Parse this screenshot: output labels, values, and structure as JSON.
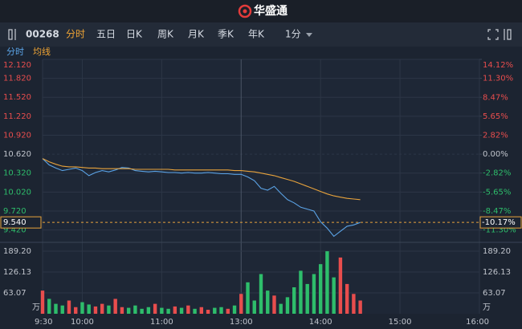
{
  "header": {
    "logo": "华盛通"
  },
  "toolbar": {
    "code": "00268",
    "tabs": [
      "分时",
      "五日",
      "日K",
      "周K",
      "月K",
      "季K",
      "年K"
    ],
    "interval": "1分"
  },
  "chart_data": {
    "type": "line",
    "x": [
      0,
      5,
      10,
      15,
      20,
      25,
      30,
      35,
      40,
      45,
      50,
      55,
      60,
      65,
      70,
      75,
      80,
      85,
      90,
      95,
      100,
      105,
      110,
      115,
      120,
      125,
      130,
      135,
      140,
      145,
      150,
      155,
      160,
      165,
      170,
      175,
      180,
      185,
      190,
      195,
      200,
      205,
      210,
      215,
      220,
      225,
      230,
      235,
      240
    ],
    "xlim": [
      0,
      330
    ],
    "xticks": [
      {
        "value": 0,
        "label": "9:30"
      },
      {
        "value": 30,
        "label": "10:00"
      },
      {
        "value": 90,
        "label": "11:00"
      },
      {
        "value": 150,
        "label": "13:00"
      },
      {
        "value": 210,
        "label": "14:00"
      },
      {
        "value": 270,
        "label": "15:00"
      },
      {
        "value": 330,
        "label": "16:00"
      }
    ],
    "series": [
      {
        "name": "分时",
        "color": "#5ba3e6",
        "values": [
          10.55,
          10.45,
          10.4,
          10.36,
          10.38,
          10.4,
          10.36,
          10.28,
          10.33,
          10.36,
          10.34,
          10.37,
          10.41,
          10.4,
          10.36,
          10.35,
          10.34,
          10.35,
          10.34,
          10.33,
          10.33,
          10.32,
          10.33,
          10.32,
          10.32,
          10.33,
          10.32,
          10.31,
          10.31,
          10.3,
          10.3,
          10.26,
          10.2,
          10.08,
          10.05,
          10.11,
          10.0,
          9.9,
          9.85,
          9.78,
          9.75,
          9.72,
          9.55,
          9.45,
          9.32,
          9.4,
          9.48,
          9.5,
          9.54
        ]
      },
      {
        "name": "均线",
        "color": "#e8a33c",
        "values": [
          10.55,
          10.5,
          10.46,
          10.43,
          10.42,
          10.42,
          10.41,
          10.4,
          10.4,
          10.39,
          10.39,
          10.39,
          10.39,
          10.39,
          10.38,
          10.38,
          10.38,
          10.38,
          10.38,
          10.38,
          10.37,
          10.37,
          10.37,
          10.37,
          10.37,
          10.37,
          10.37,
          10.37,
          10.37,
          10.36,
          10.36,
          10.35,
          10.34,
          10.32,
          10.3,
          10.28,
          10.25,
          10.22,
          10.19,
          10.15,
          10.11,
          10.07,
          10.03,
          9.99,
          9.96,
          9.94,
          9.92,
          9.91,
          9.9
        ]
      }
    ],
    "ylim": [
      9.25,
      12.12
    ],
    "yticks": [
      {
        "value": 12.12,
        "label": "12.120"
      },
      {
        "value": 11.82,
        "label": "11.820"
      },
      {
        "value": 11.52,
        "label": "11.520"
      },
      {
        "value": 11.22,
        "label": "11.220"
      },
      {
        "value": 10.92,
        "label": "10.920"
      },
      {
        "value": 10.62,
        "label": "10.620"
      },
      {
        "value": 10.32,
        "label": "10.320"
      },
      {
        "value": 10.02,
        "label": "10.020"
      },
      {
        "value": 9.72,
        "label": "9.720"
      },
      {
        "value": 9.42,
        "label": "9.420"
      }
    ],
    "y2lim": [
      -12.9,
      14.12
    ],
    "y2ticks": [
      {
        "value": 14.12,
        "label": "14.12%"
      },
      {
        "value": 11.3,
        "label": "11.30%"
      },
      {
        "value": 8.47,
        "label": "8.47%"
      },
      {
        "value": 5.65,
        "label": "5.65%"
      },
      {
        "value": 2.82,
        "label": "2.82%"
      },
      {
        "value": 0,
        "label": "0.00%"
      },
      {
        "value": -2.82,
        "label": "-2.82%"
      },
      {
        "value": -5.65,
        "label": "-5.65%"
      },
      {
        "value": -8.47,
        "label": "-8.47%"
      },
      {
        "value": -11.3,
        "label": "-11.30%"
      }
    ],
    "last": {
      "value": 9.54,
      "label": "9.540"
    },
    "last_pct": {
      "value": -10.17,
      "label": "-10.17%"
    },
    "grid": true,
    "up_color": "#e84d4d",
    "down_color": "#2ebd6b",
    "volume": {
      "values": [
        70,
        45,
        30,
        25,
        40,
        20,
        35,
        28,
        22,
        30,
        25,
        45,
        20,
        18,
        25,
        15,
        20,
        30,
        18,
        15,
        22,
        18,
        25,
        15,
        20,
        12,
        18,
        20,
        15,
        25,
        60,
        95,
        40,
        120,
        70,
        55,
        30,
        50,
        80,
        130,
        90,
        120,
        150,
        189,
        110,
        170,
        90,
        60,
        40
      ],
      "ylim": [
        0,
        208.6
      ],
      "yticks": [
        {
          "value": 189.2,
          "label": "189.20"
        },
        {
          "value": 126.13,
          "label": "126.13"
        },
        {
          "value": 63.07,
          "label": "63.07"
        }
      ],
      "unit": "万"
    }
  }
}
